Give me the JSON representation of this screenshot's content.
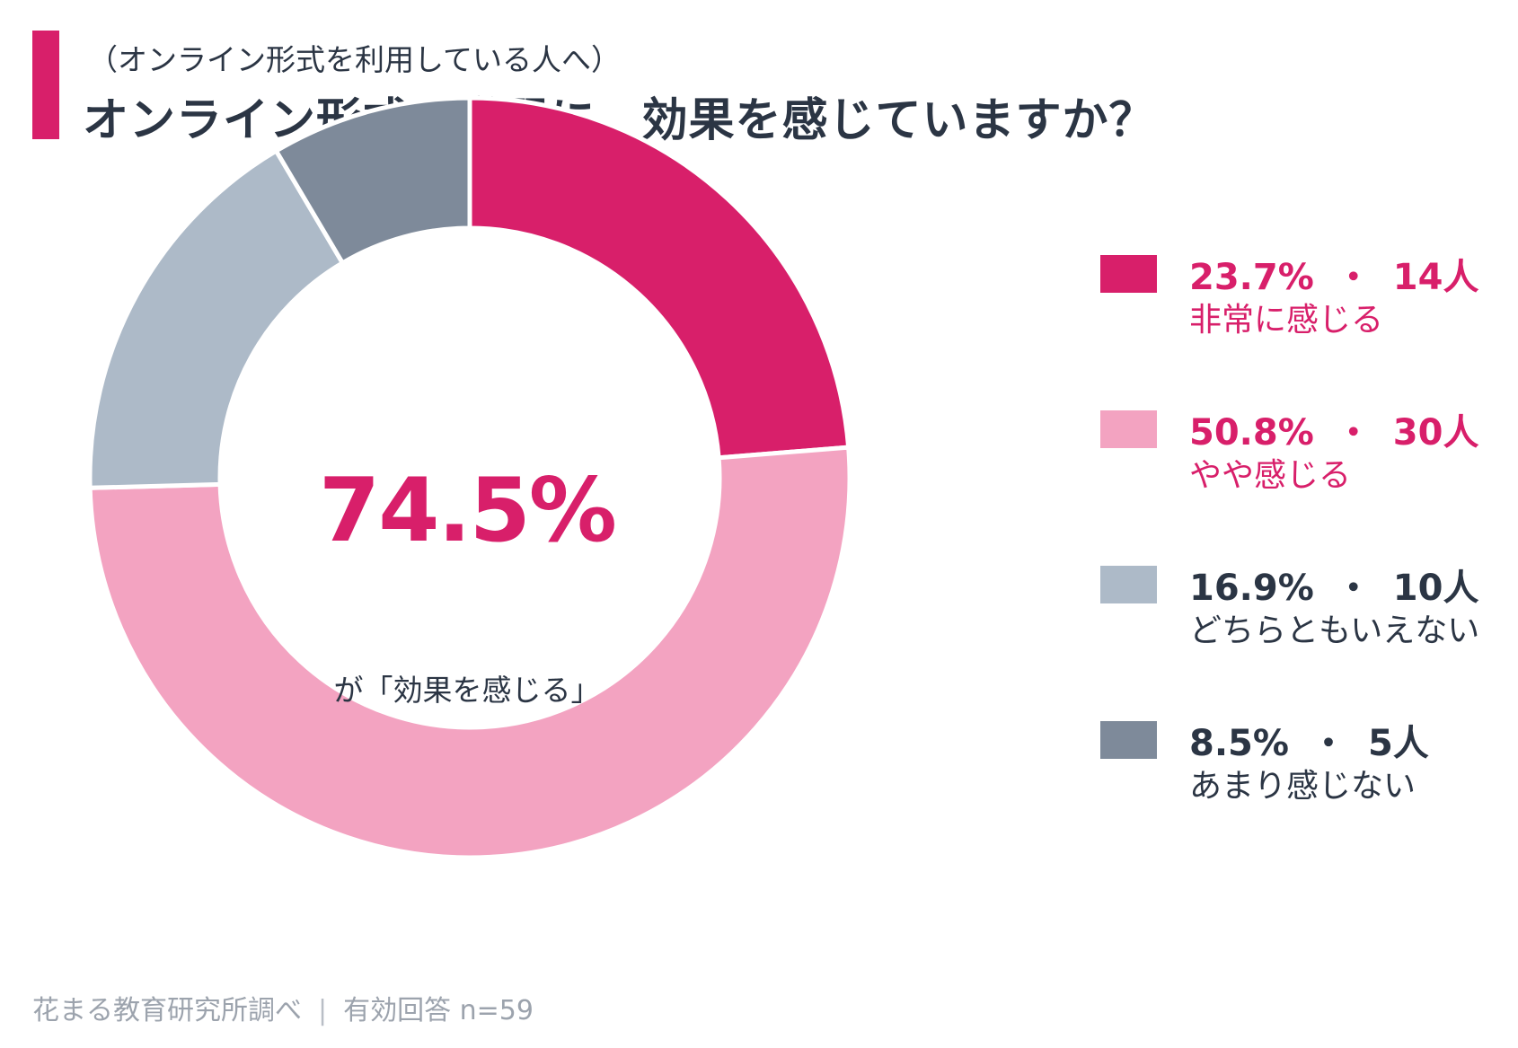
{
  "header": {
    "subtitle": "（オンライン形式を利用している人へ）",
    "title": "オンライン形式の学習に、効果を感じていますか？",
    "accent_color": "#d81f6a"
  },
  "center": {
    "value": "74.5%",
    "caption": "が「効果を感じる」"
  },
  "chart_data": {
    "type": "pie",
    "style": "donut",
    "categories": [
      "非常に感じる",
      "やや感じる",
      "どちらともいえない",
      "あまり感じない"
    ],
    "values": [
      23.7,
      50.8,
      16.9,
      8.5
    ],
    "counts": [
      14,
      30,
      10,
      5
    ],
    "colors": [
      "#d81f6a",
      "#f3a3c1",
      "#adbac8",
      "#7e8a9a"
    ],
    "start_angle_deg": 0,
    "direction": "clockwise",
    "legend_position": "right"
  },
  "legend": [
    {
      "percent": "23.7%",
      "dot": "・",
      "count": "14人",
      "label": "非常に感じる",
      "color": "#d81f6a",
      "text_color": "#d81f6a"
    },
    {
      "percent": "50.8%",
      "dot": "・",
      "count": "30人",
      "label": "やや感じる",
      "color": "#f3a3c1",
      "text_color": "#d81f6a"
    },
    {
      "percent": "16.9%",
      "dot": "・",
      "count": "10人",
      "label": "どちらともいえない",
      "color": "#adbac8",
      "text_color": "#2b3544"
    },
    {
      "percent": "8.5%",
      "dot": "・",
      "count": "5人",
      "label": "あまり感じない",
      "color": "#7e8a9a",
      "text_color": "#2b3544"
    }
  ],
  "footer": {
    "source": "花まる教育研究所調べ",
    "divider": "|",
    "sample": "有効回答 n=59"
  }
}
